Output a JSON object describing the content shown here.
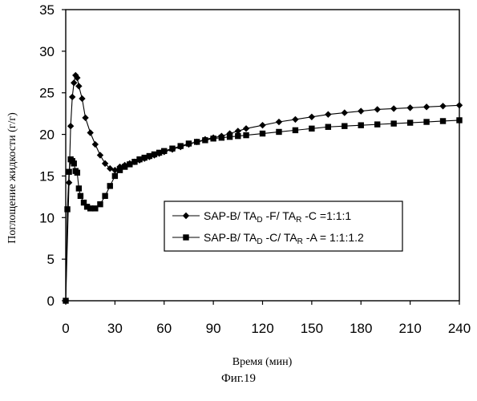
{
  "caption": "Фиг.19",
  "chart_data": {
    "type": "line",
    "xlabel": "Время (мин)",
    "ylabel": "Поглощение жидкости (г/г)",
    "xlim": [
      0,
      240
    ],
    "ylim": [
      0,
      35
    ],
    "xticks": [
      0,
      30,
      60,
      90,
      120,
      150,
      180,
      210,
      240
    ],
    "yticks": [
      0,
      5,
      10,
      15,
      20,
      25,
      30,
      35
    ],
    "grid": false,
    "legend_position": "center-right",
    "series": [
      {
        "name": "SAP-B/ TA",
        "name_parts": [
          {
            "text": "SAP-B/ TA"
          },
          {
            "text": "D",
            "sub": true
          },
          {
            "text": " -F/ TA"
          },
          {
            "text": "R",
            "sub": true
          },
          {
            "text": " -C =1:1:1"
          }
        ],
        "marker": "diamond",
        "color": "#000000",
        "x": [
          0,
          2,
          3,
          4,
          5,
          6,
          7,
          8,
          10,
          12,
          15,
          18,
          21,
          24,
          27,
          30,
          33,
          36,
          39,
          42,
          45,
          48,
          51,
          54,
          57,
          60,
          65,
          70,
          75,
          80,
          85,
          90,
          95,
          100,
          105,
          110,
          120,
          130,
          140,
          150,
          160,
          170,
          180,
          190,
          200,
          210,
          220,
          230,
          240
        ],
        "y": [
          0,
          14.2,
          21,
          24.5,
          26.2,
          27.1,
          26.8,
          25.8,
          24.3,
          22,
          20.2,
          18.8,
          17.5,
          16.5,
          15.9,
          15.7,
          16.1,
          16.3,
          16.5,
          16.7,
          16.9,
          17.1,
          17.3,
          17.5,
          17.7,
          17.9,
          18.2,
          18.5,
          18.8,
          19.1,
          19.4,
          19.6,
          19.8,
          20.1,
          20.4,
          20.7,
          21.1,
          21.5,
          21.8,
          22.1,
          22.4,
          22.6,
          22.8,
          23,
          23.1,
          23.2,
          23.3,
          23.4,
          23.5
        ]
      },
      {
        "name": "SAP-B/ TA",
        "name_parts": [
          {
            "text": "SAP-B/ TA"
          },
          {
            "text": "D",
            "sub": true
          },
          {
            "text": " -C/ TA"
          },
          {
            "text": "R",
            "sub": true
          },
          {
            "text": " -A = 1:1:1.2"
          }
        ],
        "marker": "square",
        "color": "#000000",
        "x": [
          0,
          1,
          2,
          3,
          4,
          5,
          6,
          7,
          8,
          9,
          11,
          13,
          15,
          18,
          21,
          24,
          27,
          30,
          33,
          36,
          39,
          42,
          45,
          48,
          51,
          54,
          57,
          60,
          65,
          70,
          75,
          80,
          85,
          90,
          95,
          100,
          105,
          110,
          120,
          130,
          140,
          150,
          160,
          170,
          180,
          190,
          200,
          210,
          220,
          230,
          240
        ],
        "y": [
          0,
          11,
          15.5,
          17,
          16.8,
          16.5,
          15.6,
          15.4,
          13.5,
          12.6,
          11.8,
          11.3,
          11.1,
          11.1,
          11.6,
          12.6,
          13.8,
          15,
          15.7,
          16.1,
          16.4,
          16.7,
          17,
          17.2,
          17.4,
          17.6,
          17.8,
          18,
          18.3,
          18.6,
          18.9,
          19.1,
          19.3,
          19.5,
          19.6,
          19.7,
          19.8,
          19.9,
          20.1,
          20.3,
          20.5,
          20.7,
          20.9,
          21,
          21.1,
          21.2,
          21.3,
          21.4,
          21.5,
          21.6,
          21.7
        ]
      }
    ]
  }
}
